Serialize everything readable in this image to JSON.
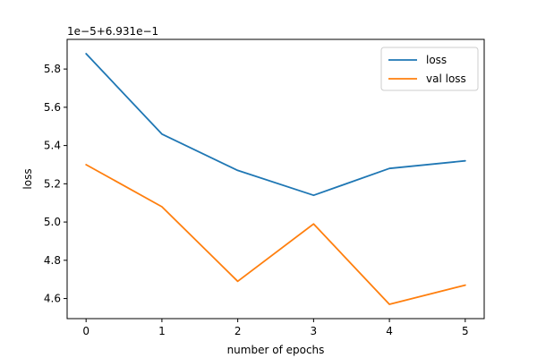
{
  "chart_data": {
    "type": "line",
    "x": [
      0,
      1,
      2,
      3,
      4,
      5
    ],
    "series": [
      {
        "name": "loss",
        "color": "#1f77b4",
        "values": [
          5.88,
          5.46,
          5.27,
          5.14,
          5.28,
          5.32
        ]
      },
      {
        "name": "val loss",
        "color": "#ff7f0e",
        "values": [
          5.3,
          5.08,
          4.69,
          4.99,
          4.57,
          4.67
        ]
      }
    ],
    "xlabel": "number of epochs",
    "ylabel": "loss",
    "y_offset_label": "1e−5+6.931e−1",
    "xlim": [
      -0.25,
      5.25
    ],
    "ylim": [
      4.495,
      5.955
    ],
    "xticks": [
      0,
      1,
      2,
      3,
      4,
      5
    ],
    "xtick_labels": [
      "0",
      "1",
      "2",
      "3",
      "4",
      "5"
    ],
    "yticks": [
      4.6,
      4.8,
      5.0,
      5.2,
      5.4,
      5.6,
      5.8
    ],
    "ytick_labels": [
      "4.6",
      "4.8",
      "5.0",
      "5.2",
      "5.4",
      "5.6",
      "5.8"
    ],
    "grid": false,
    "legend_position": "top-right"
  }
}
